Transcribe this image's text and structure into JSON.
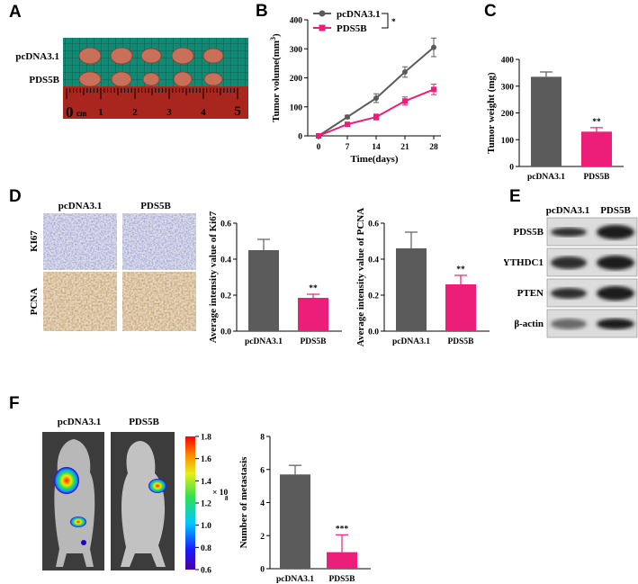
{
  "panel_letters": {
    "a": "A",
    "b": "B",
    "c": "C",
    "d": "D",
    "e": "E",
    "f": "F"
  },
  "colors": {
    "control": "#5b5b5b",
    "treatment": "#ec1e79",
    "tumor": "#c9705a",
    "ruler_bg": "#118873"
  },
  "panel_a": {
    "rows": [
      "pcDNA3.1",
      "PDS5B"
    ],
    "ruler_numbers": [
      "1",
      "2",
      "3",
      "4",
      "5"
    ],
    "ruler_unit": "cm",
    "ruler_zero": "0"
  },
  "panel_d": {
    "columns": [
      "pcDNA3.1",
      "PDS5B"
    ],
    "rows": [
      "KI67",
      "PCNA"
    ]
  },
  "panel_e": {
    "columns": [
      "pcDNA3.1",
      "PDS5B"
    ],
    "rows": [
      "PDS5B",
      "YTHDC1",
      "PTEN",
      "β-actin"
    ]
  },
  "panel_f": {
    "columns": [
      "pcDNA3.1",
      "PDS5B"
    ],
    "colorbar_ticks": [
      "1.8",
      "1.6",
      "1.4",
      "1.2",
      "1.0",
      "0.8",
      "0.6"
    ],
    "colorbar_unit": "× 10",
    "colorbar_exp": "8"
  },
  "chart_data": [
    {
      "id": "B",
      "type": "line",
      "xlabel": "Time(days)",
      "ylabel": "Tumor volume(mm",
      "ylabel_sup": "3",
      "ylabel_close": ")",
      "x": [
        0,
        7,
        14,
        21,
        28
      ],
      "ylim": [
        0,
        400
      ],
      "yticks": [
        0,
        100,
        200,
        300,
        400
      ],
      "significance": "*",
      "series": [
        {
          "name": "pcDNA3.1",
          "values": [
            0,
            65,
            130,
            220,
            305
          ],
          "errors": [
            5,
            6,
            15,
            18,
            32
          ],
          "color": "#5b5b5b"
        },
        {
          "name": "PDS5B",
          "values": [
            0,
            40,
            65,
            120,
            160
          ],
          "errors": [
            4,
            5,
            10,
            14,
            18
          ],
          "color": "#ec1e79"
        }
      ]
    },
    {
      "id": "C",
      "type": "bar",
      "ylabel": "Tumor weight (mg)",
      "categories": [
        "pcDNA3.1",
        "PDS5B"
      ],
      "values": [
        335,
        130
      ],
      "errors": [
        18,
        15
      ],
      "ylim": [
        0,
        400
      ],
      "yticks": [
        0,
        100,
        200,
        300,
        400
      ],
      "significance": [
        "",
        "**"
      ]
    },
    {
      "id": "D-Ki67",
      "type": "bar",
      "ylabel": "Average intensity value of Ki67",
      "categories": [
        "pcDNA3.1",
        "PDS5B"
      ],
      "values": [
        0.45,
        0.185
      ],
      "errors": [
        0.06,
        0.02
      ],
      "ylim": [
        0,
        0.6
      ],
      "yticks": [
        0.0,
        0.2,
        0.4,
        0.6
      ],
      "ytick_labels": [
        "0.0",
        "0.2",
        "0.4",
        "0.6"
      ],
      "significance": [
        "",
        "**"
      ]
    },
    {
      "id": "D-PCNA",
      "type": "bar",
      "ylabel": "Average intensity value of PCNA",
      "categories": [
        "pcDNA3.1",
        "PDS5B"
      ],
      "values": [
        0.46,
        0.26
      ],
      "errors": [
        0.09,
        0.05
      ],
      "ylim": [
        0,
        0.6
      ],
      "yticks": [
        0.0,
        0.2,
        0.4,
        0.6
      ],
      "ytick_labels": [
        "0.0",
        "0.2",
        "0.4",
        "0.6"
      ],
      "significance": [
        "",
        "**"
      ]
    },
    {
      "id": "F",
      "type": "bar",
      "ylabel": "Number of metastasis",
      "categories": [
        "pcDNA3.1",
        "PDS5B"
      ],
      "values": [
        5.7,
        1.0
      ],
      "errors": [
        0.55,
        1.05
      ],
      "ylim": [
        0,
        8
      ],
      "yticks": [
        0,
        2,
        4,
        6,
        8
      ],
      "significance": [
        "",
        "***"
      ]
    }
  ]
}
